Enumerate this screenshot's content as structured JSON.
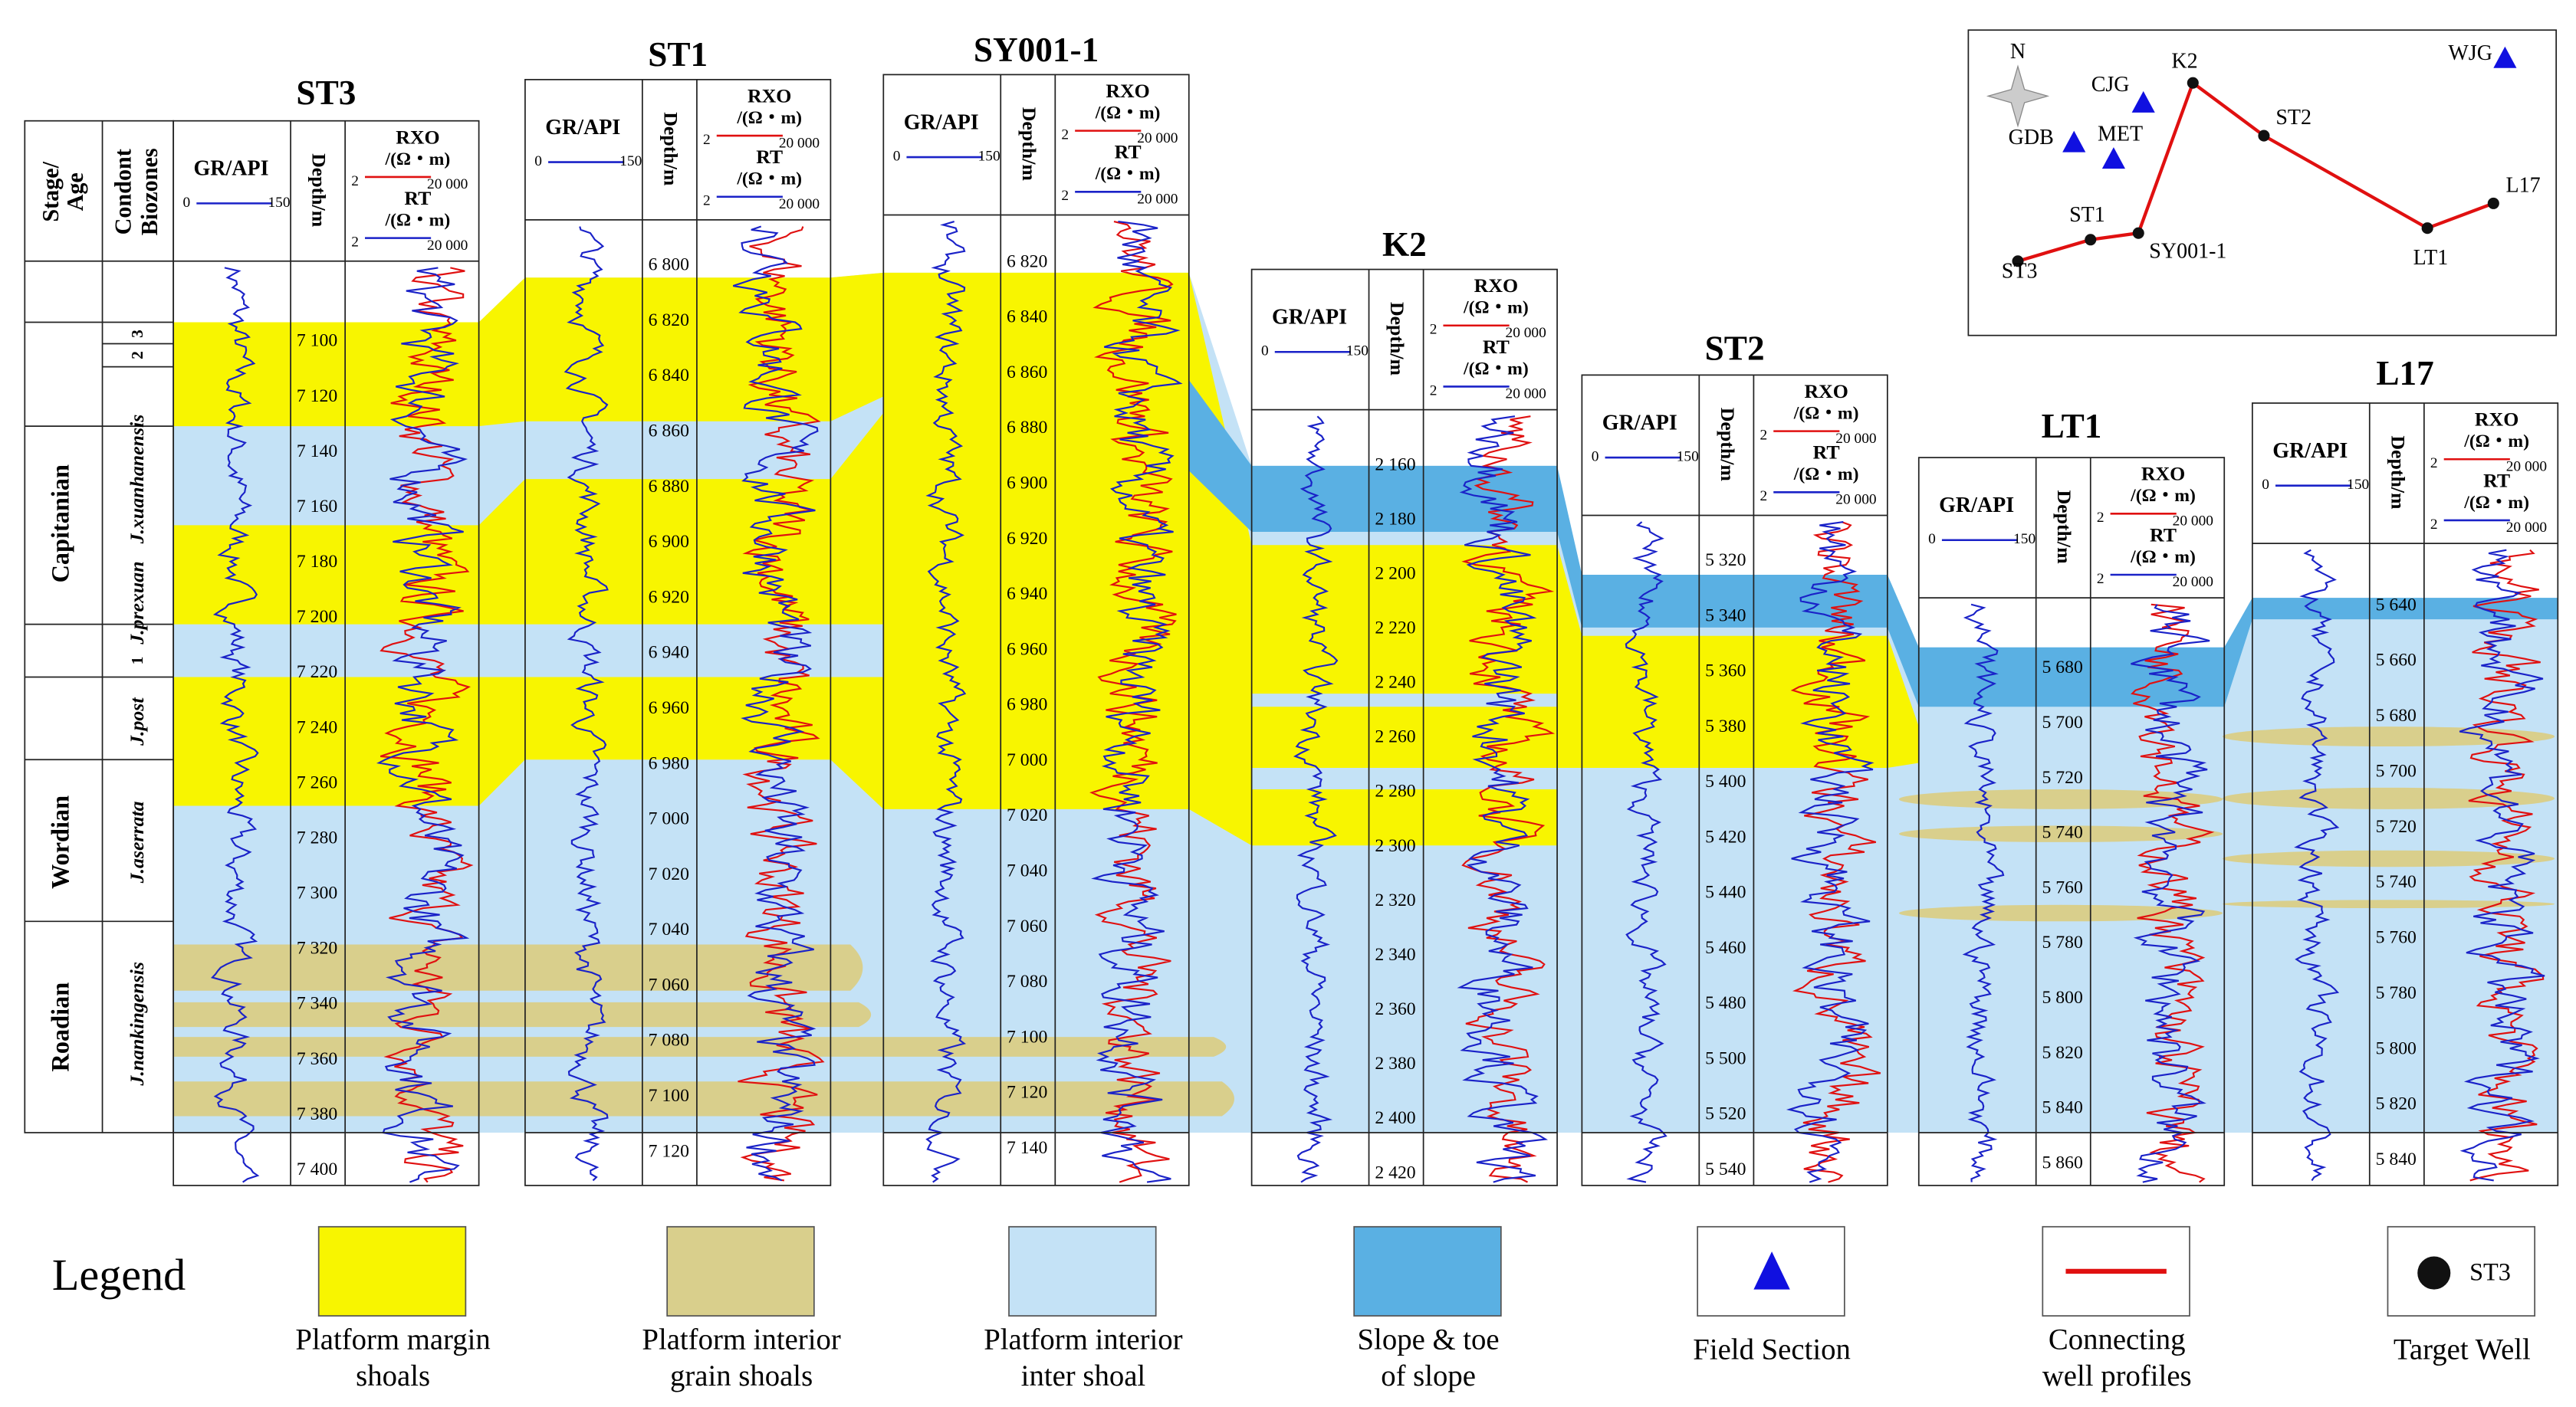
{
  "stage_column": {
    "stage_header": [
      "Stage/",
      "Age"
    ],
    "biozone_header": [
      "Condont",
      "Biozones"
    ],
    "stages": [
      "Capitanian",
      "Wordian",
      "Roadian"
    ],
    "biozones": [
      "J.xuanhanensis",
      "J.prexuan",
      "J.post",
      "J.aserrata",
      "J.nankingensis"
    ],
    "zone_numbers": [
      "3",
      "2",
      "1"
    ]
  },
  "track_headers": {
    "gr": "GR/API",
    "gr_min": "0",
    "gr_max": "150",
    "depth": "Depth/m",
    "rxo": "RXO",
    "unit": "/(Ω・m)",
    "res_min": "2",
    "res_max": "20 000",
    "rt": "RT"
  },
  "wells": [
    {
      "name": "ST3",
      "depths": [
        "7 100",
        "7 120",
        "7 140",
        "7 160",
        "7 180",
        "7 200",
        "7 220",
        "7 240",
        "7 260",
        "7 280",
        "7 300",
        "7 320",
        "7 340",
        "7 360",
        "7 380",
        "7 400"
      ]
    },
    {
      "name": "ST1",
      "depths": [
        "6 800",
        "6 820",
        "6 840",
        "6 860",
        "6 880",
        "6 900",
        "6 920",
        "6 940",
        "6 960",
        "6 980",
        "7 000",
        "7 020",
        "7 040",
        "7 060",
        "7 080",
        "7 100",
        "7 120"
      ]
    },
    {
      "name": "SY001-1",
      "depths": [
        "6 820",
        "6 840",
        "6 860",
        "6 880",
        "6 900",
        "6 920",
        "6 940",
        "6 960",
        "6 980",
        "7 000",
        "7 020",
        "7 040",
        "7 060",
        "7 080",
        "7 100",
        "7 120",
        "7 140"
      ]
    },
    {
      "name": "K2",
      "depths": [
        "2 160",
        "2 180",
        "2 200",
        "2 220",
        "2 240",
        "2 260",
        "2 280",
        "2 300",
        "2 320",
        "2 340",
        "2 360",
        "2 380",
        "2 400",
        "2 420"
      ]
    },
    {
      "name": "ST2",
      "depths": [
        "5 320",
        "5 340",
        "5 360",
        "5 380",
        "5 400",
        "5 420",
        "5 440",
        "5 460",
        "5 480",
        "5 500",
        "5 520",
        "5 540"
      ]
    },
    {
      "name": "LT1",
      "depths": [
        "5 680",
        "5 700",
        "5 720",
        "5 740",
        "5 760",
        "5 780",
        "5 800",
        "5 820",
        "5 840",
        "5 860"
      ]
    },
    {
      "name": "L17",
      "depths": [
        "5 640",
        "5 660",
        "5 680",
        "5 700",
        "5 720",
        "5 740",
        "5 760",
        "5 780",
        "5 800",
        "5 820",
        "5 840"
      ]
    }
  ],
  "map": {
    "north": "N",
    "labels": [
      "CJG",
      "K2",
      "ST2",
      "WJG",
      "GDB",
      "MET",
      "L17",
      "ST1",
      "SY001-1",
      "LT1",
      "ST3"
    ]
  },
  "legend": {
    "title": "Legend",
    "items": [
      {
        "label": [
          "Platform margin",
          "shoals"
        ]
      },
      {
        "label": [
          "Platform interior",
          "grain shoals"
        ]
      },
      {
        "label": [
          "Platform interior",
          "inter shoal"
        ]
      },
      {
        "label": [
          "Slope & toe",
          "of slope"
        ]
      },
      {
        "label": [
          "Field  Section"
        ]
      },
      {
        "label": [
          "Connecting",
          "well profiles"
        ]
      },
      {
        "label": [
          "Target Well"
        ],
        "sample": "ST3"
      }
    ]
  }
}
